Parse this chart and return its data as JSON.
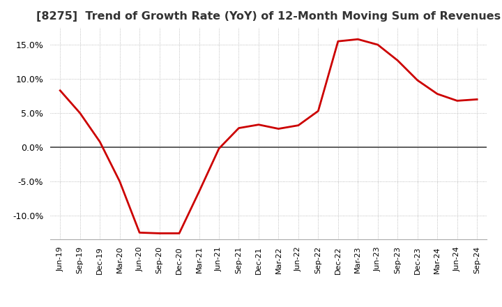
{
  "title": "[8275]  Trend of Growth Rate (YoY) of 12-Month Moving Sum of Revenues",
  "title_fontsize": 11.5,
  "line_color": "#cc0000",
  "background_color": "#ffffff",
  "grid_color": "#aaaaaa",
  "ylim": [
    -0.135,
    0.175
  ],
  "yticks": [
    -0.1,
    -0.05,
    0.0,
    0.05,
    0.1,
    0.15
  ],
  "x_labels": [
    "Jun-19",
    "Sep-19",
    "Dec-19",
    "Mar-20",
    "Jun-20",
    "Sep-20",
    "Dec-20",
    "Mar-21",
    "Jun-21",
    "Sep-21",
    "Dec-21",
    "Mar-22",
    "Jun-22",
    "Sep-22",
    "Dec-22",
    "Mar-23",
    "Jun-23",
    "Sep-23",
    "Dec-23",
    "Mar-24",
    "Jun-24",
    "Sep-24"
  ],
  "values": [
    0.083,
    0.05,
    0.008,
    -0.05,
    -0.125,
    -0.126,
    -0.126,
    -0.065,
    -0.002,
    0.028,
    0.033,
    0.027,
    0.032,
    0.053,
    0.155,
    0.158,
    0.15,
    0.127,
    0.098,
    0.078,
    0.068,
    0.07
  ]
}
